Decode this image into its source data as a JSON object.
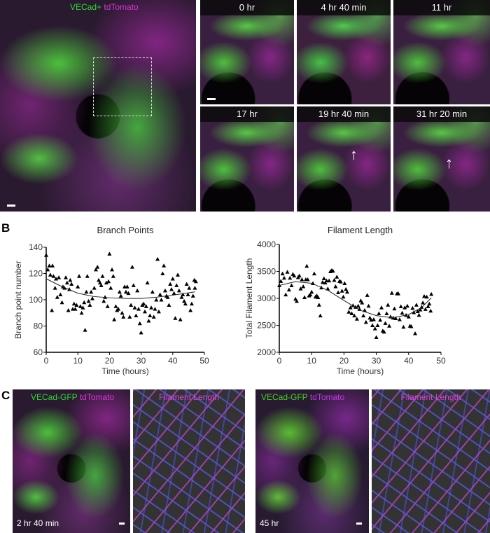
{
  "panels": {
    "A": "A",
    "B": "B",
    "C": "C"
  },
  "panel_a": {
    "overview_label": {
      "green": "VECad+",
      "magenta": "tdTomato"
    },
    "timepoints": [
      "0 hr",
      "4 hr 40 min",
      "11 hr",
      "17 hr",
      "19 hr 40 min",
      "31 hr 20 min"
    ],
    "colors": {
      "green": "#33d633",
      "magenta": "#d633d6"
    }
  },
  "panel_c": {
    "label_green": "VECad-GFP",
    "label_magenta": "tdTomato",
    "filament_title": "Filament Length",
    "time_1": "2 hr 40 min",
    "time_2": "45 hr"
  },
  "chart_data": [
    {
      "type": "scatter",
      "title": "Branch Points",
      "xlabel": "Time (hours)",
      "ylabel": "Branch point number",
      "xlim": [
        0,
        50
      ],
      "ylim": [
        60,
        140
      ],
      "xticks": [
        0,
        10,
        20,
        30,
        40,
        50
      ],
      "yticks": [
        60,
        80,
        100,
        120,
        140
      ],
      "marker": "triangle",
      "grid": false,
      "points": [
        [
          0,
          134
        ],
        [
          0.5,
          123
        ],
        [
          1,
          126
        ],
        [
          1.3,
          119
        ],
        [
          1.8,
          92
        ],
        [
          2,
          126
        ],
        [
          2.3,
          118
        ],
        [
          2.8,
          109
        ],
        [
          3.1,
          116
        ],
        [
          3.5,
          102
        ],
        [
          4,
          117
        ],
        [
          4.5,
          104
        ],
        [
          5,
          98
        ],
        [
          5.3,
          110
        ],
        [
          5.8,
          109
        ],
        [
          6.2,
          117
        ],
        [
          6.6,
          113
        ],
        [
          7,
          92
        ],
        [
          7.3,
          108
        ],
        [
          7.6,
          115
        ],
        [
          8,
          112
        ],
        [
          8.4,
          93
        ],
        [
          8.8,
          97
        ],
        [
          9.2,
          93
        ],
        [
          9.6,
          96
        ],
        [
          10,
          110
        ],
        [
          10.4,
          118
        ],
        [
          10.8,
          95
        ],
        [
          11.2,
          90
        ],
        [
          11.6,
          94
        ],
        [
          12,
          98
        ],
        [
          12.3,
          77
        ],
        [
          12.7,
          106
        ],
        [
          13,
          118
        ],
        [
          13.4,
          99
        ],
        [
          13.8,
          96
        ],
        [
          14.2,
          106
        ],
        [
          14.6,
          101
        ],
        [
          15.2,
          109
        ],
        [
          15.7,
          123
        ],
        [
          16.2,
          125
        ],
        [
          16.6,
          115
        ],
        [
          17,
          113
        ],
        [
          17.4,
          111
        ],
        [
          17.8,
          118
        ],
        [
          18.2,
          99
        ],
        [
          18.6,
          102
        ],
        [
          19,
          113
        ],
        [
          19.4,
          95
        ],
        [
          19.7,
          114
        ],
        [
          20,
          135
        ],
        [
          20.4,
          109
        ],
        [
          20.8,
          123
        ],
        [
          21.2,
          118
        ],
        [
          21.5,
          85
        ],
        [
          22,
          95
        ],
        [
          22.4,
          92
        ],
        [
          22.8,
          93
        ],
        [
          23.2,
          106
        ],
        [
          23.6,
          103
        ],
        [
          24,
          90
        ],
        [
          24.4,
          87
        ],
        [
          24.8,
          110
        ],
        [
          25.2,
          106
        ],
        [
          25.6,
          110
        ],
        [
          26,
          105
        ],
        [
          26.4,
          87
        ],
        [
          26.8,
          96
        ],
        [
          27.2,
          125
        ],
        [
          27.6,
          111
        ],
        [
          28,
          94
        ],
        [
          28.4,
          88
        ],
        [
          28.8,
          107
        ],
        [
          29.2,
          93
        ],
        [
          29.6,
          82
        ],
        [
          30,
          75
        ],
        [
          30.4,
          96
        ],
        [
          30.8,
          97
        ],
        [
          31.2,
          91
        ],
        [
          31.6,
          95
        ],
        [
          32,
          113
        ],
        [
          32.4,
          84
        ],
        [
          32.8,
          88
        ],
        [
          33.2,
          94
        ],
        [
          33.6,
          106
        ],
        [
          34,
          87
        ],
        [
          34.4,
          93
        ],
        [
          34.8,
          100
        ],
        [
          35.2,
          131
        ],
        [
          35.6,
          91
        ],
        [
          36,
          104
        ],
        [
          36.4,
          100
        ],
        [
          36.8,
          120
        ],
        [
          37.2,
          126
        ],
        [
          37.6,
          107
        ],
        [
          38,
          103
        ],
        [
          38.4,
          102
        ],
        [
          38.8,
          96
        ],
        [
          39.2,
          112
        ],
        [
          39.6,
          108
        ],
        [
          40,
          116
        ],
        [
          40.4,
          105
        ],
        [
          40.8,
          86
        ],
        [
          41.2,
          111
        ],
        [
          41.6,
          119
        ],
        [
          42,
          107
        ],
        [
          42.4,
          85
        ],
        [
          42.8,
          102
        ],
        [
          43.2,
          104
        ],
        [
          43.6,
          99
        ],
        [
          44,
          97
        ],
        [
          44.4,
          112
        ],
        [
          44.8,
          104
        ],
        [
          45.2,
          109
        ],
        [
          45.6,
          92
        ],
        [
          46,
          97
        ],
        [
          46.4,
          103
        ],
        [
          46.8,
          115
        ],
        [
          47,
          109
        ],
        [
          47.3,
          114
        ]
      ],
      "fit": [
        [
          0,
          116
        ],
        [
          5,
          110
        ],
        [
          10,
          105
        ],
        [
          15,
          102.5
        ],
        [
          20,
          101.5
        ],
        [
          25,
          101
        ],
        [
          30,
          101
        ],
        [
          35,
          102
        ],
        [
          40,
          103.5
        ],
        [
          47,
          106
        ]
      ]
    },
    {
      "type": "scatter",
      "title": "Filament Length",
      "xlabel": "Time (hours)",
      "ylabel": "Total Filament Length",
      "xlim": [
        0,
        50
      ],
      "ylim": [
        2000,
        4000
      ],
      "xticks": [
        0,
        10,
        20,
        30,
        40,
        50
      ],
      "yticks": [
        2000,
        2500,
        3000,
        3500,
        4000
      ],
      "marker": "triangle",
      "grid": false,
      "points": [
        [
          0,
          3240
        ],
        [
          0.5,
          3320
        ],
        [
          1,
          3460
        ],
        [
          1.5,
          3380
        ],
        [
          2,
          3070
        ],
        [
          2.5,
          3490
        ],
        [
          3,
          3160
        ],
        [
          3.3,
          3380
        ],
        [
          3.8,
          3240
        ],
        [
          4.2,
          3450
        ],
        [
          4.6,
          3420
        ],
        [
          5,
          2990
        ],
        [
          5.4,
          2950
        ],
        [
          5.8,
          3390
        ],
        [
          6.2,
          3420
        ],
        [
          6.6,
          3180
        ],
        [
          7,
          3350
        ],
        [
          7.4,
          3220
        ],
        [
          7.8,
          3020
        ],
        [
          8.2,
          3350
        ],
        [
          8.5,
          3600
        ],
        [
          8.8,
          3350
        ],
        [
          9.2,
          3050
        ],
        [
          9.6,
          3070
        ],
        [
          10,
          3120
        ],
        [
          10.4,
          3280
        ],
        [
          10.8,
          3460
        ],
        [
          11.2,
          3030
        ],
        [
          11.6,
          3050
        ],
        [
          12,
          3020
        ],
        [
          12.3,
          2880
        ],
        [
          12.7,
          2680
        ],
        [
          13,
          3200
        ],
        [
          13.4,
          3300
        ],
        [
          13.8,
          3370
        ],
        [
          14.2,
          3290
        ],
        [
          14.6,
          3330
        ],
        [
          15,
          3180
        ],
        [
          15.4,
          3330
        ],
        [
          15.8,
          3500
        ],
        [
          16.2,
          3520
        ],
        [
          16.6,
          3510
        ],
        [
          17,
          3340
        ],
        [
          17.4,
          3220
        ],
        [
          17.8,
          3400
        ],
        [
          18.2,
          3110
        ],
        [
          18.6,
          3320
        ],
        [
          19,
          3310
        ],
        [
          19.4,
          3140
        ],
        [
          19.8,
          3030
        ],
        [
          20.2,
          3280
        ],
        [
          20.6,
          3170
        ],
        [
          21,
          3120
        ],
        [
          21.5,
          2750
        ],
        [
          22,
          2830
        ],
        [
          22.4,
          2720
        ],
        [
          22.8,
          2870
        ],
        [
          23.2,
          2680
        ],
        [
          23.6,
          2840
        ],
        [
          24,
          2620
        ],
        [
          24.4,
          2860
        ],
        [
          24.8,
          2800
        ],
        [
          25.2,
          2960
        ],
        [
          25.6,
          2920
        ],
        [
          26,
          2680
        ],
        [
          26.4,
          2780
        ],
        [
          26.8,
          2560
        ],
        [
          27.2,
          3060
        ],
        [
          27.6,
          2860
        ],
        [
          28,
          2640
        ],
        [
          28.4,
          2600
        ],
        [
          28.8,
          2500
        ],
        [
          29.2,
          2610
        ],
        [
          29.6,
          2440
        ],
        [
          30,
          2280
        ],
        [
          30.4,
          2500
        ],
        [
          30.8,
          2720
        ],
        [
          31.2,
          2600
        ],
        [
          31.6,
          2830
        ],
        [
          32,
          2400
        ],
        [
          32.4,
          2380
        ],
        [
          32.8,
          2540
        ],
        [
          33.2,
          2720
        ],
        [
          33.6,
          2880
        ],
        [
          34,
          2490
        ],
        [
          34.4,
          2660
        ],
        [
          34.8,
          3100
        ],
        [
          35.2,
          2640
        ],
        [
          35.6,
          2810
        ],
        [
          36,
          2630
        ],
        [
          36.4,
          3090
        ],
        [
          36.8,
          3090
        ],
        [
          37.2,
          2610
        ],
        [
          37.6,
          2850
        ],
        [
          38,
          2730
        ],
        [
          38.4,
          2470
        ],
        [
          38.8,
          2830
        ],
        [
          39.2,
          2690
        ],
        [
          39.6,
          2860
        ],
        [
          40,
          2660
        ],
        [
          40.4,
          2490
        ],
        [
          40.8,
          2480
        ],
        [
          41.2,
          2820
        ],
        [
          41.6,
          2740
        ],
        [
          42,
          2350
        ],
        [
          42.4,
          2880
        ],
        [
          42.8,
          2760
        ],
        [
          43.2,
          2690
        ],
        [
          43.6,
          2790
        ],
        [
          44,
          2840
        ],
        [
          44.4,
          2920
        ],
        [
          44.8,
          3040
        ],
        [
          45.2,
          2800
        ],
        [
          45.6,
          3030
        ],
        [
          46,
          2850
        ],
        [
          46.4,
          2900
        ],
        [
          46.8,
          2770
        ],
        [
          47,
          3080
        ]
      ],
      "fit": [
        [
          0,
          3240
        ],
        [
          5,
          3310
        ],
        [
          10,
          3280
        ],
        [
          15,
          3150
        ],
        [
          20,
          2960
        ],
        [
          25,
          2780
        ],
        [
          30,
          2680
        ],
        [
          35,
          2640
        ],
        [
          40,
          2700
        ],
        [
          44,
          2830
        ],
        [
          47,
          3010
        ]
      ]
    }
  ]
}
